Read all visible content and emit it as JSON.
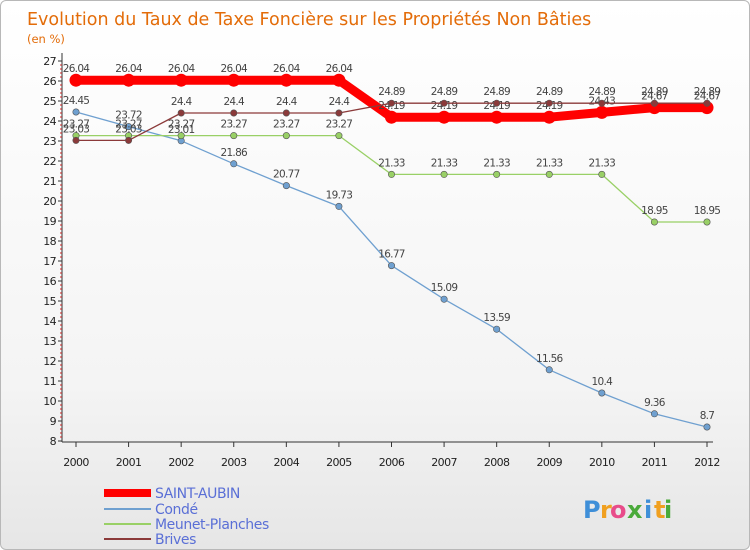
{
  "chart_data": {
    "type": "line",
    "title": "Evolution du Taux de Taxe Foncière sur les Propriétés Non Bâties",
    "subtitle": "(en %)",
    "xlabel": "",
    "ylabel": "(en %)",
    "categories": [
      "2000",
      "2001",
      "2002",
      "2003",
      "2004",
      "2005",
      "2006",
      "2007",
      "2008",
      "2009",
      "2010",
      "2011",
      "2012"
    ],
    "ylim": [
      8,
      27
    ],
    "yticks": [
      8,
      9,
      10,
      11,
      12,
      13,
      14,
      15,
      16,
      17,
      18,
      19,
      20,
      21,
      22,
      23,
      24,
      25,
      26,
      27
    ],
    "grid": false,
    "legend_position": "bottom-left",
    "series": [
      {
        "name": "SAINT-AUBIN",
        "color": "#ff0000",
        "line_width": 9,
        "values": [
          26.04,
          26.04,
          26.04,
          26.04,
          26.04,
          26.04,
          24.19,
          24.19,
          24.19,
          24.19,
          24.43,
          24.67,
          24.67
        ],
        "labels": [
          "26.04",
          "26.04",
          "26.04",
          "26.04",
          "26.04",
          "26.04",
          "24.19",
          "24.19",
          "24.19",
          "24.19",
          "24.43",
          "24.67",
          "24.67"
        ]
      },
      {
        "name": "Condé",
        "color": "#6fa0d0",
        "line_width": 1.3,
        "values": [
          24.45,
          23.72,
          23.01,
          21.86,
          20.77,
          19.73,
          16.77,
          15.09,
          13.59,
          11.56,
          10.4,
          9.36,
          8.7
        ],
        "labels": [
          "24.45",
          "23.72",
          "23.01",
          "21.86",
          "20.77",
          "19.73",
          "16.77",
          "15.09",
          "13.59",
          "11.56",
          "10.4",
          "9.36",
          "8.7"
        ]
      },
      {
        "name": "Meunet-Planches",
        "color": "#99d066",
        "line_width": 1.3,
        "values": [
          23.27,
          23.27,
          23.27,
          23.27,
          23.27,
          23.27,
          21.33,
          21.33,
          21.33,
          21.33,
          21.33,
          18.95,
          18.95
        ],
        "labels": [
          "23.27",
          "23.27",
          "23.27",
          "23.27",
          "23.27",
          "23.27",
          "21.33",
          "21.33",
          "21.33",
          "21.33",
          "21.33",
          "18.95",
          "18.95"
        ]
      },
      {
        "name": "Brives",
        "color": "#8b3a3a",
        "line_width": 1.3,
        "values": [
          23.03,
          23.03,
          24.4,
          24.4,
          24.4,
          24.4,
          24.89,
          24.89,
          24.89,
          24.89,
          24.89,
          24.89,
          24.89
        ],
        "labels": [
          "23.03",
          "23.03",
          "24.4",
          "24.4",
          "24.4",
          "24.4",
          "24.89",
          "24.89",
          "24.89",
          "24.89",
          "24.89",
          "24.89",
          "24.89"
        ]
      }
    ]
  },
  "logo": {
    "letters": [
      "P",
      "r",
      "o",
      "x",
      "i",
      "t",
      "i"
    ],
    "colors": [
      "#3f8fd8",
      "#f0a020",
      "#e84c8a",
      "#4aaa3a",
      "#3f8fd8",
      "#f0a020",
      "#4aaa3a"
    ]
  }
}
